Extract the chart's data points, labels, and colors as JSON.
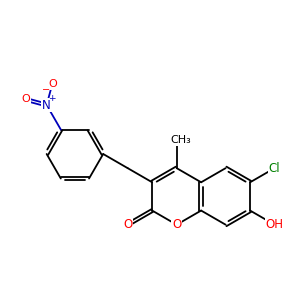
{
  "background_color": "#ffffff",
  "bond_color": "#000000",
  "figsize": [
    3.0,
    3.0
  ],
  "dpi": 100,
  "bond_lw": 1.3,
  "atom_colors": {
    "O": "#ff0000",
    "N": "#0000bb",
    "Cl": "#008000"
  }
}
